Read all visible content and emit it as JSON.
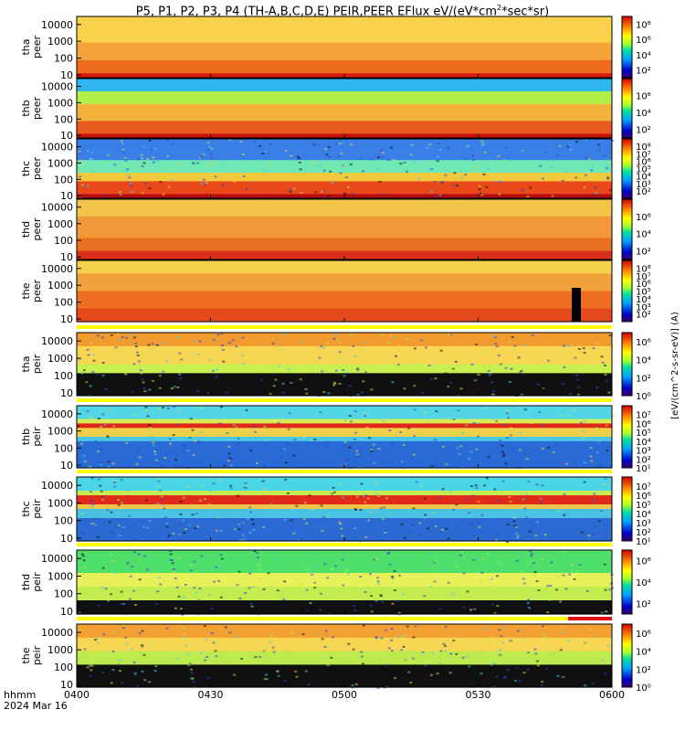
{
  "title": {
    "prefix": "P5, P1, P2, P3, P4 (TH-A,B,C,D,E) PEIR,PEER EFlux eV/(eV*cm",
    "sup": "2",
    "suffix": "*sec*sr)"
  },
  "time_axis": {
    "ticks": [
      "0400",
      "0430",
      "0500",
      "0530",
      "0600"
    ],
    "row_label": "hhmm",
    "date": "2024 Mar 16"
  },
  "colorbar_text": "[eV/(cm^2-s-sr-eV)] (A)",
  "colorbar_text_bottom": "[eV/(cm^2-s-sr-eV)]",
  "chart_data": {
    "type": "heatmap",
    "x_range": [
      "04:00",
      "06:00"
    ],
    "y_scale": "log",
    "panels": [
      {
        "probe": "tha",
        "species": "peer",
        "ylim": [
          7,
          30000
        ],
        "yticks": [
          "10000",
          "1000",
          "100",
          "10"
        ],
        "cbar_ticks": [
          "10⁸",
          "10⁶",
          "10⁴",
          "10²"
        ],
        "cbar_range": [
          1,
          9
        ]
      },
      {
        "probe": "thb",
        "species": "peer",
        "ylim": [
          7,
          30000
        ],
        "yticks": [
          "10000",
          "1000",
          "100",
          "10"
        ],
        "cbar_ticks": [
          "10⁶",
          "10⁴",
          "10²"
        ],
        "cbar_range": [
          1,
          8
        ]
      },
      {
        "probe": "thc",
        "species": "peer",
        "ylim": [
          7,
          30000
        ],
        "yticks": [
          "10000",
          "1000",
          "100",
          "10"
        ],
        "cbar_ticks": [
          "10⁸",
          "10⁷",
          "10⁶",
          "10⁵",
          "10⁴",
          "10³",
          "10²"
        ],
        "cbar_range": [
          1,
          9
        ]
      },
      {
        "probe": "thd",
        "species": "peer",
        "ylim": [
          7,
          30000
        ],
        "yticks": [
          "10000",
          "1000",
          "100",
          "10"
        ],
        "cbar_ticks": [
          "10⁶",
          "10⁴",
          "10²"
        ],
        "cbar_range": [
          1,
          8
        ]
      },
      {
        "probe": "the",
        "species": "peer",
        "ylim": [
          7,
          30000
        ],
        "yticks": [
          "10000",
          "1000",
          "100",
          "10"
        ],
        "cbar_ticks": [
          "10⁸",
          "10⁷",
          "10⁶",
          "10⁵",
          "10⁴",
          "10³",
          "10²"
        ],
        "cbar_range": [
          1,
          9
        ]
      },
      {
        "probe": "tha",
        "species": "peir",
        "ylim": [
          7,
          30000
        ],
        "yticks": [
          "10000",
          "1000",
          "100",
          "10"
        ],
        "cbar_ticks": [
          "10⁶",
          "10⁴",
          "10²",
          "10⁰"
        ],
        "cbar_range": [
          0,
          7
        ]
      },
      {
        "probe": "thb",
        "species": "peir",
        "ylim": [
          7,
          30000
        ],
        "yticks": [
          "10000",
          "1000",
          "100",
          "10"
        ],
        "cbar_ticks": [
          "10⁷",
          "10⁶",
          "10⁵",
          "10⁴",
          "10³",
          "10²",
          "10¹"
        ],
        "cbar_range": [
          1,
          8
        ]
      },
      {
        "probe": "thc",
        "species": "peir",
        "ylim": [
          7,
          30000
        ],
        "yticks": [
          "10000",
          "1000",
          "100",
          "10"
        ],
        "cbar_ticks": [
          "10⁷",
          "10⁶",
          "10⁵",
          "10⁴",
          "10³",
          "10²",
          "10¹"
        ],
        "cbar_range": [
          1,
          8
        ]
      },
      {
        "probe": "thd",
        "species": "peir",
        "ylim": [
          7,
          30000
        ],
        "yticks": [
          "10000",
          "1000",
          "100",
          "10"
        ],
        "cbar_ticks": [
          "10⁶",
          "10⁴",
          "10²"
        ],
        "cbar_range": [
          1,
          7
        ]
      },
      {
        "probe": "the",
        "species": "peir",
        "ylim": [
          7,
          30000
        ],
        "yticks": [
          "10000",
          "1000",
          "100",
          "10"
        ],
        "cbar_ticks": [
          "10⁶",
          "10⁴",
          "10²",
          "10⁰"
        ],
        "cbar_range": [
          0,
          7
        ]
      }
    ]
  }
}
